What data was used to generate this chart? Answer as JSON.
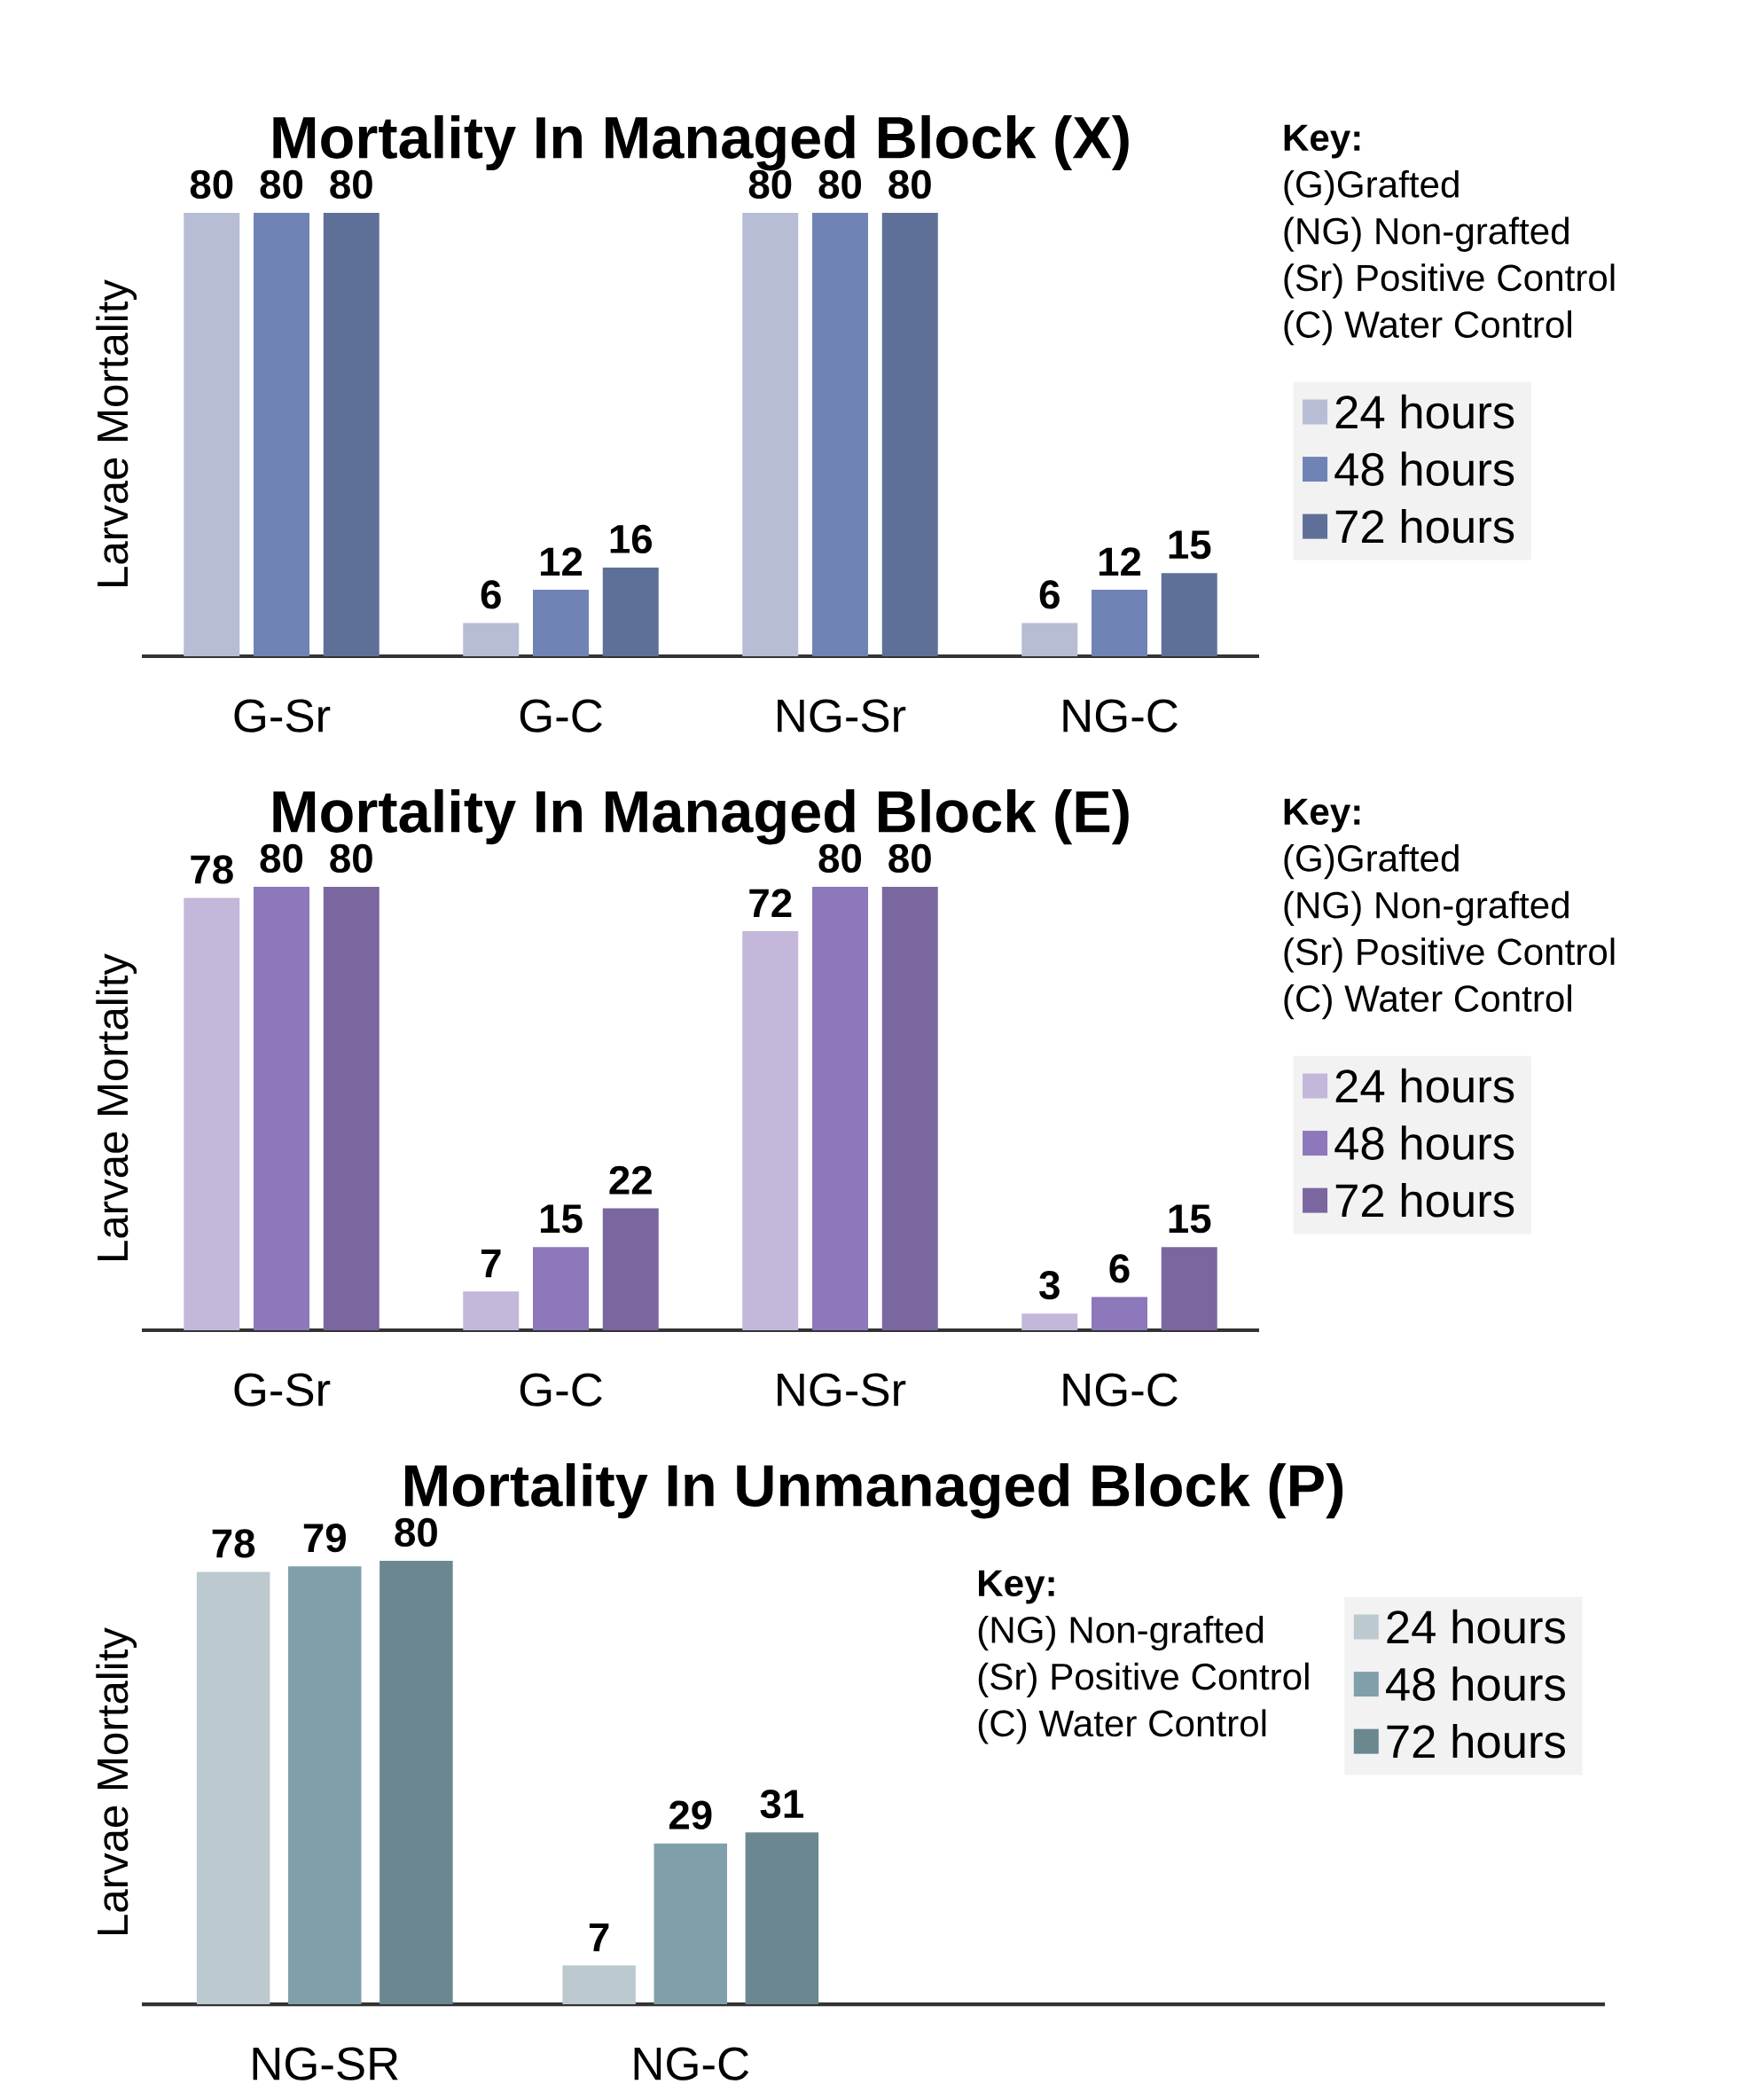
{
  "chart_data": [
    {
      "type": "bar",
      "title": "Mortality In Managed Block (X)",
      "ylabel": "Larvae Mortality",
      "categories": [
        "G-Sr",
        "G-C",
        "NG-Sr",
        "NG-C"
      ],
      "data_labels": true,
      "legend": "right",
      "series": [
        {
          "name": "24 hours",
          "color": "#b7bdd4",
          "values": [
            80,
            6,
            80,
            6
          ]
        },
        {
          "name": "48 hours",
          "color": "#7083b5",
          "values": [
            80,
            12,
            80,
            12
          ]
        },
        {
          "name": "72 hours",
          "color": "#5f7098",
          "values": [
            80,
            16,
            80,
            15
          ]
        }
      ],
      "annotations": [
        "Key:",
        "(G)Grafted",
        "(NG) Non-grafted",
        "(Sr) Positive Control",
        "(C) Water Control"
      ]
    },
    {
      "type": "bar",
      "title": "Mortality In Managed Block (E)",
      "ylabel": "Larvae Mortality",
      "categories": [
        "G-Sr",
        "G-C",
        "NG-Sr",
        "NG-C"
      ],
      "data_labels": true,
      "legend": "right",
      "series": [
        {
          "name": "24 hours",
          "color": "#c3b8d9",
          "values": [
            78,
            7,
            72,
            3
          ]
        },
        {
          "name": "48 hours",
          "color": "#8c78ba",
          "values": [
            80,
            15,
            80,
            6
          ]
        },
        {
          "name": "72 hours",
          "color": "#7b67a0",
          "values": [
            80,
            22,
            80,
            15
          ]
        }
      ],
      "annotations": [
        "Key:",
        "(G)Grafted",
        "(NG) Non-grafted",
        "(Sr) Positive Control",
        "(C) Water Control"
      ]
    },
    {
      "type": "bar",
      "title": "Mortality In Unmanaged Block (P)",
      "ylabel": "Larvae Mortality",
      "categories": [
        "NG-SR",
        "NG-C"
      ],
      "data_labels": true,
      "legend": "top right",
      "series": [
        {
          "name": "24 hours",
          "color": "#bccacf",
          "values": [
            78,
            7
          ]
        },
        {
          "name": "48 hours",
          "color": "#7fa0ab",
          "values": [
            79,
            29
          ]
        },
        {
          "name": "72 hours",
          "color": "#6b8891",
          "values": [
            80,
            31
          ]
        }
      ],
      "annotations": [
        "Key:",
        "(NG) Non-grafted",
        "(Sr) Positive Control",
        "(C) Water Control"
      ]
    }
  ]
}
